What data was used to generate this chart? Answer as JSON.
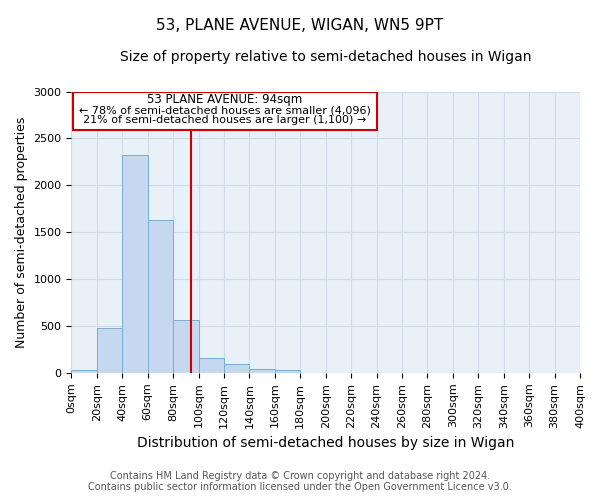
{
  "title": "53, PLANE AVENUE, WIGAN, WN5 9PT",
  "subtitle": "Size of property relative to semi-detached houses in Wigan",
  "xlabel": "Distribution of semi-detached houses by size in Wigan",
  "ylabel": "Number of semi-detached properties",
  "footer_line1": "Contains HM Land Registry data © Crown copyright and database right 2024.",
  "footer_line2": "Contains public sector information licensed under the Open Government Licence v3.0.",
  "annotation_line1": "53 PLANE AVENUE: 94sqm",
  "annotation_line2": "← 78% of semi-detached houses are smaller (4,096)",
  "annotation_line3": "21% of semi-detached houses are larger (1,100) →",
  "property_size": 94,
  "bin_edges": [
    0,
    20,
    40,
    60,
    80,
    100,
    120,
    140,
    160,
    180,
    200,
    220,
    240,
    260,
    280,
    300,
    320,
    340,
    360,
    380,
    400
  ],
  "bar_values": [
    30,
    475,
    2320,
    1630,
    565,
    155,
    95,
    45,
    30,
    0,
    0,
    0,
    0,
    0,
    0,
    0,
    0,
    0,
    0,
    0
  ],
  "bar_color": "#c5d8f0",
  "bar_edge_color": "#7aadd4",
  "vline_color": "#cc0000",
  "box_edge_color": "#cc0000",
  "background_color": "#ffffff",
  "plot_bg_color": "#e8f0f8",
  "grid_color": "#d0dce8",
  "ylim": [
    0,
    3000
  ],
  "xlim": [
    0,
    400
  ],
  "title_fontsize": 11,
  "subtitle_fontsize": 10,
  "axis_label_fontsize": 9,
  "tick_fontsize": 8,
  "annotation_fontsize": 8.5,
  "footer_fontsize": 7
}
